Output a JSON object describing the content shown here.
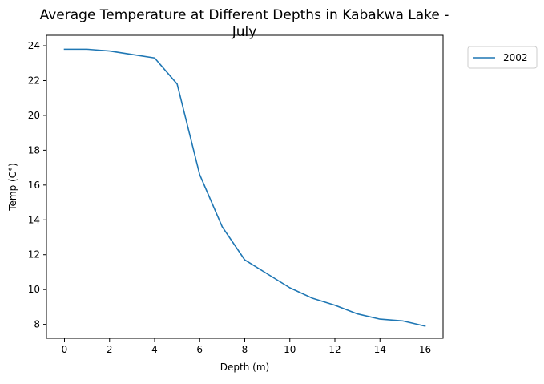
{
  "chart_data": {
    "type": "line",
    "title": "Average Temperature at Different Depths in Kabakwa Lake -\nJuly",
    "xlabel": "Depth (m)",
    "ylabel": "Temp (C°)",
    "xlim": [
      -0.8,
      16.8
    ],
    "ylim": [
      7.2,
      24.6
    ],
    "xticks": [
      0,
      2,
      4,
      6,
      8,
      10,
      12,
      14,
      16
    ],
    "yticks": [
      8,
      10,
      12,
      14,
      16,
      18,
      20,
      22,
      24
    ],
    "grid": false,
    "legend": {
      "placement": "outside-top-right",
      "entries": [
        "2002"
      ]
    },
    "series": [
      {
        "name": "2002",
        "color": "#1f77b4",
        "x": [
          0,
          1,
          2,
          3,
          4,
          5,
          6,
          7,
          8,
          9,
          10,
          11,
          12,
          13,
          14,
          15,
          16
        ],
        "y": [
          23.8,
          23.8,
          23.7,
          23.5,
          23.3,
          21.8,
          16.6,
          13.6,
          11.7,
          10.9,
          10.1,
          9.5,
          9.1,
          8.6,
          8.3,
          8.2,
          7.9
        ]
      }
    ]
  }
}
